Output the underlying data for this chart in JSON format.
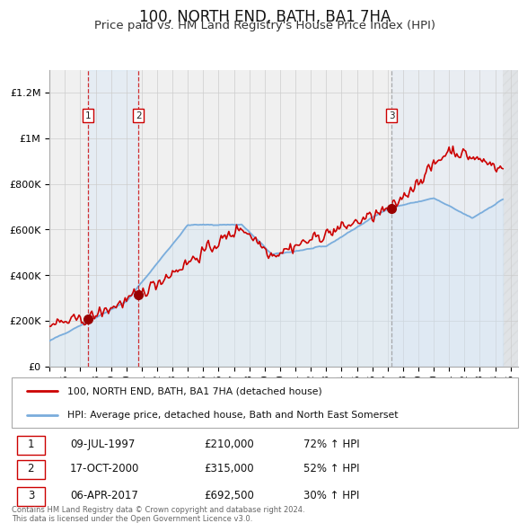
{
  "title": "100, NORTH END, BATH, BA1 7HA",
  "subtitle": "Price paid vs. HM Land Registry's House Price Index (HPI)",
  "title_fontsize": 12,
  "subtitle_fontsize": 9.5,
  "xlim": [
    1995.0,
    2025.5
  ],
  "ylim": [
    0,
    1300000
  ],
  "yticks": [
    0,
    200000,
    400000,
    600000,
    800000,
    1000000,
    1200000
  ],
  "ytick_labels": [
    "£0",
    "£200K",
    "£400K",
    "£600K",
    "£800K",
    "£1M",
    "£1.2M"
  ],
  "xtick_years": [
    1995,
    1996,
    1997,
    1998,
    1999,
    2000,
    2001,
    2002,
    2003,
    2004,
    2005,
    2006,
    2007,
    2008,
    2009,
    2010,
    2011,
    2012,
    2013,
    2014,
    2015,
    2016,
    2017,
    2018,
    2019,
    2020,
    2021,
    2022,
    2023,
    2024,
    2025
  ],
  "property_color": "#cc0000",
  "hpi_color": "#7aaddc",
  "hpi_fill_color": "#d0e4f5",
  "vline_color_red": "#cc0000",
  "vline_color_gray": "#999999",
  "grid_color": "#cccccc",
  "bg_color": "#ffffff",
  "plot_bg_color": "#f0f0f0",
  "span_color": "#d8e8f8",
  "transactions": [
    {
      "num": 1,
      "date_label": "09-JUL-1997",
      "year": 1997.52,
      "price": 210000,
      "price_label": "£210,000",
      "pct": "72%",
      "direction": "↑"
    },
    {
      "num": 2,
      "date_label": "17-OCT-2000",
      "year": 2000.79,
      "price": 315000,
      "price_label": "£315,000",
      "pct": "52%",
      "direction": "↑"
    },
    {
      "num": 3,
      "date_label": "06-APR-2017",
      "year": 2017.27,
      "price": 692500,
      "price_label": "£692,500",
      "pct": "30%",
      "direction": "↑"
    }
  ],
  "legend_property_label": "100, NORTH END, BATH, BA1 7HA (detached house)",
  "legend_hpi_label": "HPI: Average price, detached house, Bath and North East Somerset",
  "footnote": "Contains HM Land Registry data © Crown copyright and database right 2024.\nThis data is licensed under the Open Government Licence v3.0."
}
